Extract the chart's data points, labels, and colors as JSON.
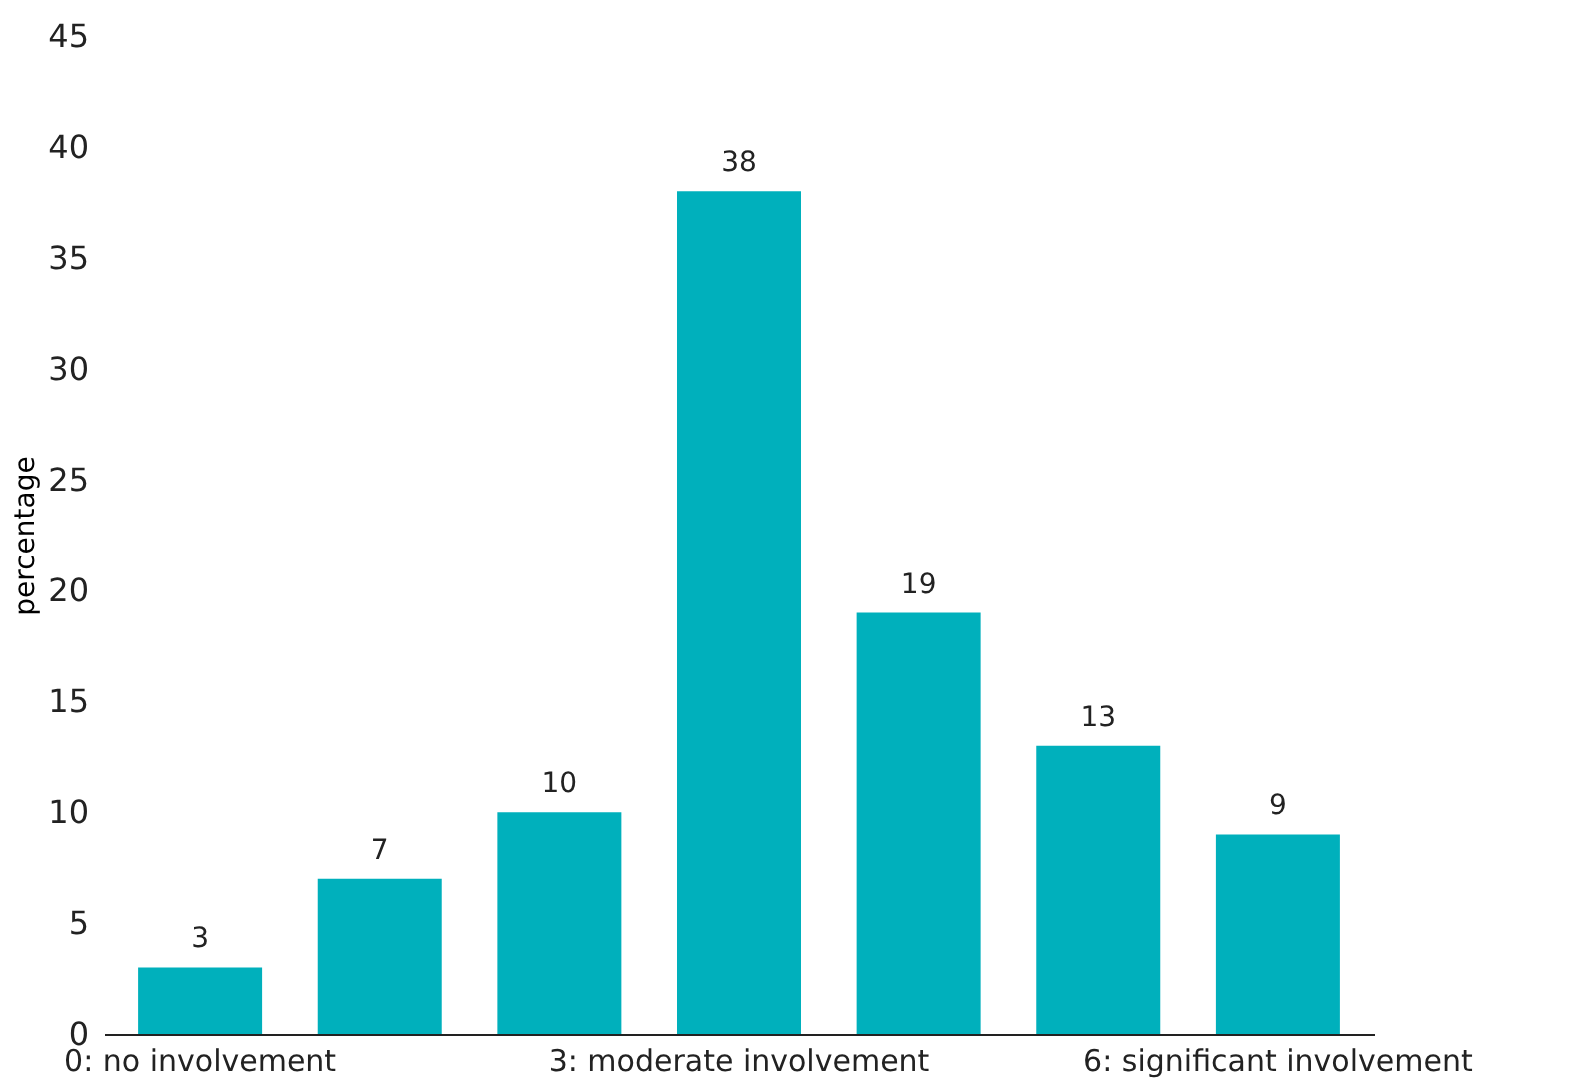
{
  "chart_data": {
    "type": "bar",
    "categories": [
      "0: no involvement",
      null,
      null,
      "3: moderate involvement",
      null,
      null,
      "6: significant involvement"
    ],
    "values": [
      3,
      7,
      10,
      38,
      19,
      13,
      9
    ],
    "color": "#00b0bc",
    "ylabel": "percentage",
    "ylim": [
      0,
      45
    ],
    "yticks": [
      0,
      5,
      10,
      15,
      20,
      25,
      30,
      35,
      40,
      45
    ],
    "data_labels": true
  }
}
